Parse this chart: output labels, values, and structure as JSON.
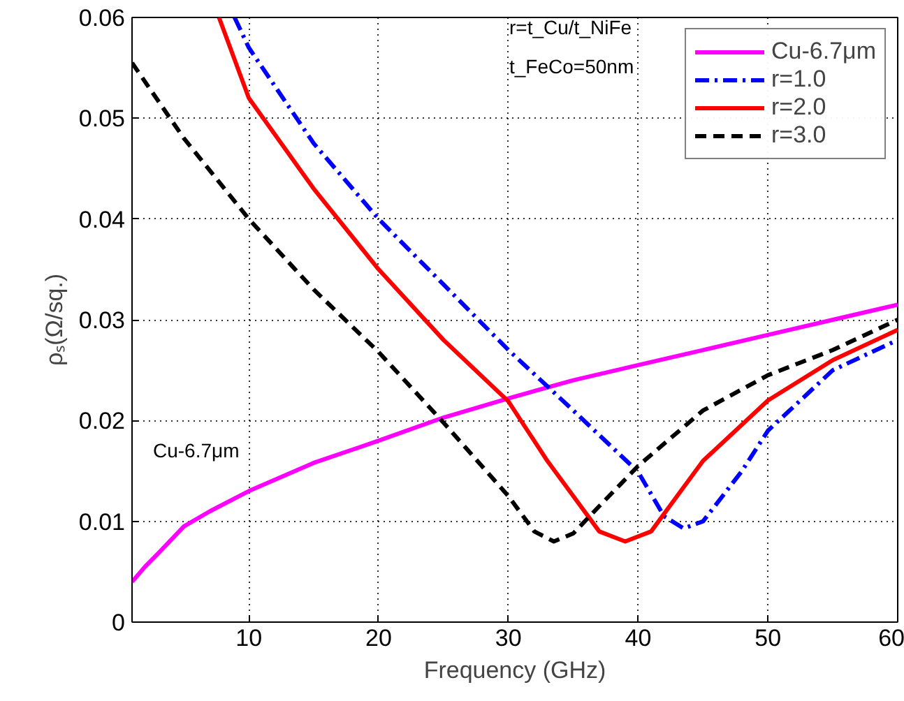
{
  "chart_data": {
    "type": "line",
    "xlabel": "Frequency (GHz)",
    "ylabel": "ρₛ(Ω/sq.)",
    "xlim": [
      1,
      60
    ],
    "ylim": [
      0,
      0.06
    ],
    "xticks": [
      10,
      20,
      30,
      40,
      50,
      60
    ],
    "yticks": [
      0,
      0.01,
      0.02,
      0.03,
      0.04,
      0.05,
      0.06
    ],
    "grid": true,
    "legend": "top right",
    "marker": "none",
    "annotations": [
      "r=t_Cu/t_NiFe",
      "t_FeCo=50nm",
      "Cu-6.7μm"
    ],
    "series": [
      {
        "name": "Cu-6.7μm",
        "color": "#ff00ff",
        "line_style": "solid",
        "x": [
          1,
          2,
          3,
          5,
          7,
          10,
          15,
          20,
          25,
          30,
          35,
          40,
          45,
          50,
          55,
          60
        ],
        "values": [
          0.004,
          0.0055,
          0.0068,
          0.0095,
          0.011,
          0.013,
          0.0158,
          0.018,
          0.0203,
          0.0222,
          0.024,
          0.0255,
          0.027,
          0.0285,
          0.03,
          0.0315
        ]
      },
      {
        "name": "r=1.0",
        "color": "#0000ff",
        "line_style": "dashdot",
        "x": [
          8.9,
          10,
          15,
          20,
          25,
          30,
          35,
          40,
          42,
          43.5,
          45,
          48,
          50,
          55,
          60
        ],
        "values": [
          0.06,
          0.057,
          0.0475,
          0.04,
          0.0335,
          0.027,
          0.021,
          0.0149,
          0.0105,
          0.0093,
          0.01,
          0.015,
          0.019,
          0.025,
          0.028
        ]
      },
      {
        "name": "r=2.0",
        "color": "#ff0000",
        "line_style": "solid",
        "x": [
          7.7,
          10,
          15,
          20,
          25,
          30,
          33,
          35,
          37,
          39,
          41,
          43,
          45,
          50,
          55,
          60
        ],
        "values": [
          0.06,
          0.052,
          0.043,
          0.035,
          0.028,
          0.0219,
          0.016,
          0.0125,
          0.009,
          0.008,
          0.009,
          0.0125,
          0.016,
          0.022,
          0.026,
          0.029
        ]
      },
      {
        "name": "r=3.0",
        "color": "#000000",
        "line_style": "dashed",
        "x": [
          1,
          5,
          10,
          15,
          20,
          25,
          30,
          32,
          33.5,
          35,
          37,
          40,
          45,
          50,
          55,
          60
        ],
        "values": [
          0.0555,
          0.048,
          0.04,
          0.033,
          0.0268,
          0.0198,
          0.0125,
          0.009,
          0.008,
          0.0088,
          0.0115,
          0.0155,
          0.021,
          0.0245,
          0.027,
          0.03
        ]
      }
    ]
  }
}
